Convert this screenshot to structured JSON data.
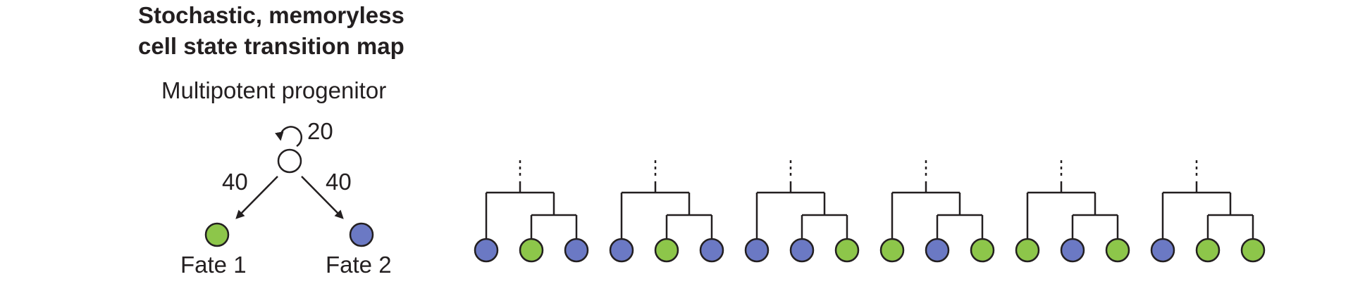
{
  "title": {
    "line1": "Stochastic, memoryless",
    "line2": "cell state transition map"
  },
  "map": {
    "progenitor_label": "Multipotent progenitor",
    "self_renewal_pct": "20",
    "to_fate1_pct": "40",
    "to_fate2_pct": "40",
    "fate1_label": "Fate 1",
    "fate2_label": "Fate 2"
  },
  "colors": {
    "fate1": "#8dc64a",
    "fate2": "#6b79c4",
    "line": "#231f20",
    "progenitor_fill": "#ffffff"
  },
  "lineages": [
    [
      "fate2",
      "fate1",
      "fate2"
    ],
    [
      "fate2",
      "fate1",
      "fate2"
    ],
    [
      "fate2",
      "fate2",
      "fate1"
    ],
    [
      "fate1",
      "fate2",
      "fate1"
    ],
    [
      "fate1",
      "fate2",
      "fate1"
    ],
    [
      "fate2",
      "fate1",
      "fate1"
    ]
  ]
}
